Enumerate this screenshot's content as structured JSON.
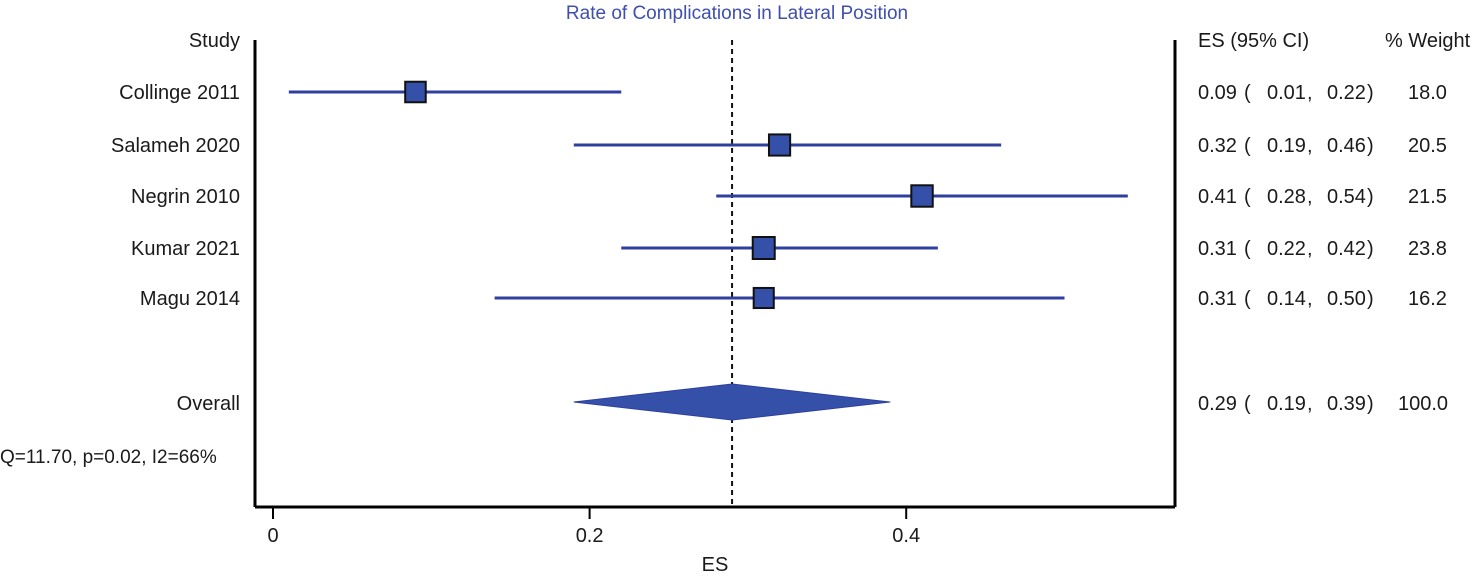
{
  "chart_data": {
    "type": "forest",
    "title": "Rate of Complications in Lateral Position",
    "xlabel": "ES",
    "xlim": [
      0,
      0.564
    ],
    "xticks": [
      0,
      0.2,
      0.4
    ],
    "xtick_labels": [
      "0",
      "0.2",
      "0.4"
    ],
    "reference_line": 0.29,
    "headers": {
      "study": "Study",
      "es_ci": "ES (95% CI)",
      "weight": "% Weight"
    },
    "studies": [
      {
        "name": "Collinge 2011",
        "es": 0.09,
        "lo": 0.01,
        "hi": 0.22,
        "weight": 18.0,
        "es_text": "0.09",
        "lo_text": "0.01",
        "hi_text": "0.22",
        "weight_text": "18.0"
      },
      {
        "name": "Salameh 2020",
        "es": 0.32,
        "lo": 0.19,
        "hi": 0.46,
        "weight": 20.5,
        "es_text": "0.32",
        "lo_text": "0.19",
        "hi_text": "0.46",
        "weight_text": "20.5"
      },
      {
        "name": "Negrin 2010",
        "es": 0.41,
        "lo": 0.28,
        "hi": 0.54,
        "weight": 21.5,
        "es_text": "0.41",
        "lo_text": "0.28",
        "hi_text": "0.54",
        "weight_text": "21.5"
      },
      {
        "name": "Kumar 2021",
        "es": 0.31,
        "lo": 0.22,
        "hi": 0.42,
        "weight": 23.8,
        "es_text": "0.31",
        "lo_text": "0.22",
        "hi_text": "0.42",
        "weight_text": "23.8"
      },
      {
        "name": "Magu 2014",
        "es": 0.31,
        "lo": 0.14,
        "hi": 0.5,
        "weight": 16.2,
        "es_text": "0.31",
        "lo_text": "0.14",
        "hi_text": "0.50",
        "weight_text": "16.2"
      }
    ],
    "overall": {
      "name": "Overall",
      "es": 0.29,
      "lo": 0.19,
      "hi": 0.39,
      "weight": 100.0,
      "es_text": "0.29",
      "lo_text": "0.19",
      "hi_text": "0.39",
      "weight_text": "100.0"
    },
    "heterogeneity": "Q=11.70, p=0.02, I2=66%",
    "marker_color": "#3550a8",
    "marker_stroke": "#111111",
    "ci_line_color": "#2e3fa0",
    "axis_color": "#000000"
  }
}
